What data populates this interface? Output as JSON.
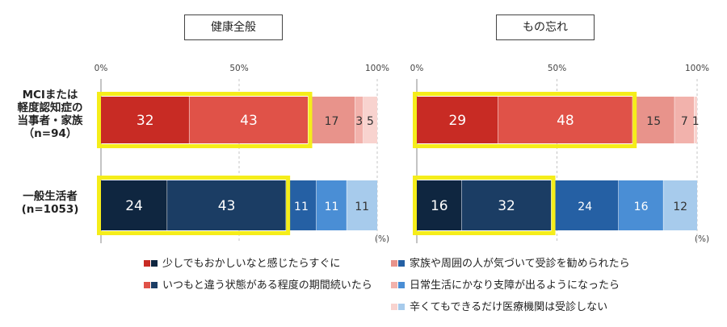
{
  "chart_data": [
    {
      "type": "bar",
      "orientation": "horizontal",
      "stacked": true,
      "title": "健康全般",
      "xlim": [
        0,
        100
      ],
      "xticks": [
        "0%",
        "50%",
        "100%"
      ],
      "unit": "(%)",
      "categories": [
        "MCIまたは軽度認知症の当事者・家族（n=94）",
        "一般生活者(n=1053)"
      ],
      "series": [
        {
          "name": "少しでもおかしいなと感じたらすぐに",
          "values": [
            32,
            24
          ]
        },
        {
          "name": "いつもと違う状態がある程度の期間続いたら",
          "values": [
            43,
            43
          ]
        },
        {
          "name": "家族や周囲の人が気づいて受診を勧められたら",
          "values": [
            17,
            11
          ]
        },
        {
          "name": "日常生活にかなり支障が出るようになったら",
          "values": [
            3,
            11
          ]
        },
        {
          "name": "辛くてもできるだけ医療機関は受診しない",
          "values": [
            5,
            11
          ]
        }
      ]
    },
    {
      "type": "bar",
      "orientation": "horizontal",
      "stacked": true,
      "title": "もの忘れ",
      "xlim": [
        0,
        100
      ],
      "xticks": [
        "0%",
        "50%",
        "100%"
      ],
      "unit": "(%)",
      "categories": [
        "MCIまたは軽度認知症の当事者・家族（n=94）",
        "一般生活者(n=1053)"
      ],
      "series": [
        {
          "name": "少しでもおかしいなと感じたらすぐに",
          "values": [
            29,
            16
          ]
        },
        {
          "name": "いつもと違う状態がある程度の期間続いたら",
          "values": [
            48,
            32
          ]
        },
        {
          "name": "家族や周囲の人が気づいて受診を勧められたら",
          "values": [
            15,
            24
          ]
        },
        {
          "name": "日常生活にかなり支障が出るようになったら",
          "values": [
            7,
            16
          ]
        },
        {
          "name": "辛くてもできるだけ医療機関は受診しない",
          "values": [
            1,
            12
          ]
        }
      ]
    }
  ],
  "row_labels": {
    "mci": [
      "MCIまたは",
      "軽度認知症の",
      "当事者・家族",
      "（n=94）"
    ],
    "general": [
      "一般生活者",
      "(n=1053)"
    ]
  },
  "colors": {
    "mci": [
      "#c82b24",
      "#e05248",
      "#e8938b",
      "#f2b2ac",
      "#f8d3cf"
    ],
    "general": [
      "#0f2640",
      "#1b3d64",
      "#2560a4",
      "#4a8ed5",
      "#a7cbec"
    ],
    "highlight": "#f5ed1a"
  },
  "legend": [
    {
      "label": "少しでもおかしいなと感じたらすぐに",
      "colors": [
        "#c82b24",
        "#0f2640"
      ]
    },
    {
      "label": "いつもと違う状態がある程度の期間続いたら",
      "colors": [
        "#e05248",
        "#1b3d64"
      ]
    },
    {
      "label": "家族や周囲の人が気づいて受診を勧められたら",
      "colors": [
        "#e8938b",
        "#2560a4"
      ]
    },
    {
      "label": "日常生活にかなり支障が出るようになったら",
      "colors": [
        "#f2b2ac",
        "#4a8ed5"
      ]
    },
    {
      "label": "辛くてもできるだけ医療機関は受診しない",
      "colors": [
        "#f8d3cf",
        "#a7cbec"
      ]
    }
  ]
}
